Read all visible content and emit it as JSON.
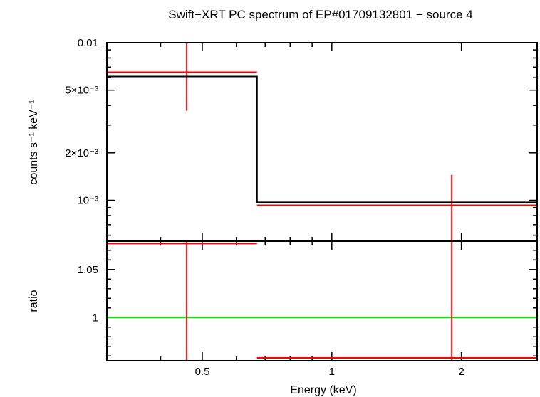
{
  "chart_data": {
    "type": "scatter",
    "title": "Swift−XRT PC spectrum of EP#01709132801 − source 4",
    "xlabel": "Energy (keV)",
    "xscale": "log",
    "xlim": [
      0.3,
      3.0
    ],
    "x_ticks": [
      {
        "value": 0.5,
        "label": "0.5"
      },
      {
        "value": 1,
        "label": "1"
      },
      {
        "value": 2,
        "label": "2"
      }
    ],
    "panels": [
      {
        "name": "spectrum",
        "ylabel": "counts s⁻¹ keV⁻¹",
        "yscale": "log",
        "ylim": [
          0.00055,
          0.01
        ],
        "y_ticks": [
          {
            "value": 0.01,
            "label": "0.01"
          },
          {
            "value": 0.005,
            "label": "5×10⁻³"
          },
          {
            "value": 0.002,
            "label": "2×10⁻³"
          },
          {
            "value": 0.001,
            "label": "10⁻³"
          }
        ],
        "series": [
          {
            "name": "data",
            "color": "#ff0000",
            "points": [
              {
                "x": 0.46,
                "xlo": 0.3,
                "xhi": 0.67,
                "y": 0.0065,
                "ylo": 0.0037,
                "yhi": 0.01
              },
              {
                "x": 1.9,
                "xlo": 0.67,
                "xhi": 3.0,
                "y": 0.00093,
                "ylo": 0.00055,
                "yhi": 0.00145
              }
            ]
          },
          {
            "name": "model",
            "color": "#000000",
            "steps": [
              {
                "xlo": 0.3,
                "xhi": 0.67,
                "y": 0.0061
              },
              {
                "xlo": 0.67,
                "xhi": 3.0,
                "y": 0.00097
              }
            ]
          }
        ]
      },
      {
        "name": "ratio",
        "ylabel": "ratio",
        "yscale": "linear",
        "ylim": [
          0.955,
          1.0795
        ],
        "y_ticks": [
          {
            "value": 1.05,
            "label": "1.05"
          },
          {
            "value": 1,
            "label": "1"
          }
        ],
        "reference_line": {
          "value": 1,
          "color": "#00ee00"
        },
        "series": [
          {
            "name": "data",
            "color": "#ff0000",
            "points": [
              {
                "x": 0.46,
                "xlo": 0.3,
                "xhi": 0.67,
                "y": 1.077,
                "ylo": 0.955,
                "yhi": 1.0795
              },
              {
                "x": 1.9,
                "xlo": 0.67,
                "xhi": 3.0,
                "y": 0.958,
                "ylo": 0.955,
                "yhi": 1.0795
              }
            ]
          }
        ]
      }
    ]
  }
}
